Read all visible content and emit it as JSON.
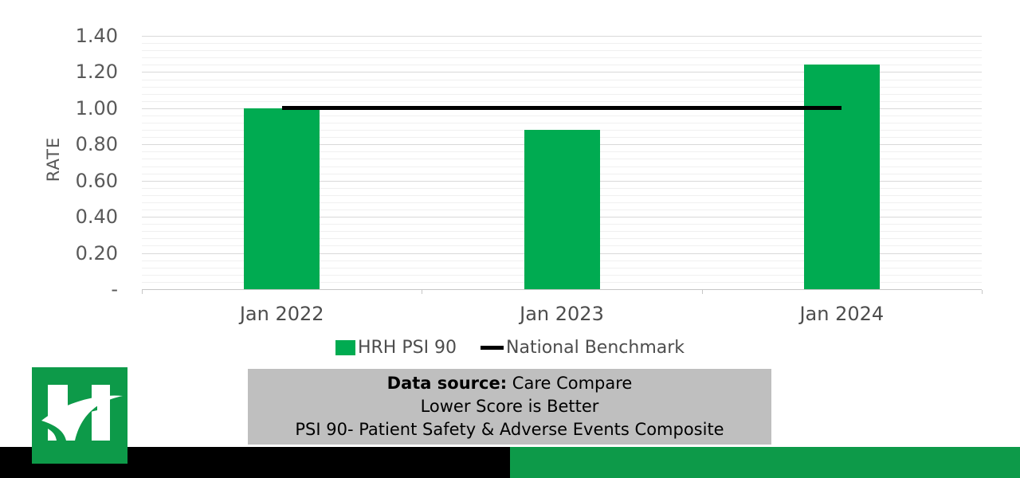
{
  "chart_data": {
    "type": "bar",
    "title": "",
    "categories": [
      "Jan 2022",
      "Jan 2023",
      "Jan 2024"
    ],
    "series": [
      {
        "name": "HRH PSI 90",
        "type": "bar",
        "color": "#00ab51",
        "values": [
          1.0,
          0.88,
          1.24
        ]
      },
      {
        "name": "National Benchmark",
        "type": "line",
        "color": "#000000",
        "values": [
          1.0,
          1.0,
          1.0
        ]
      }
    ],
    "xlabel": "",
    "ylabel": "RATE",
    "ylim": [
      0,
      1.4
    ],
    "ytick_step": 0.2,
    "yticks": [
      {
        "label": "1.40",
        "value": 1.4
      },
      {
        "label": "1.20",
        "value": 1.2
      },
      {
        "label": "1.00",
        "value": 1.0
      },
      {
        "label": "0.80",
        "value": 0.8
      },
      {
        "label": "0.60",
        "value": 0.6
      },
      {
        "label": "0.40",
        "value": 0.4
      },
      {
        "label": "0.20",
        "value": 0.2
      },
      {
        "label": "-",
        "value": 0.0
      }
    ],
    "grid": "horizontal major + minor",
    "legend_position": "bottom"
  },
  "footer": {
    "line1_label": "Data source:",
    "line1_value": " Care Compare",
    "line2": "Lower Score is Better",
    "line3": "PSI 90- Patient Safety & Adverse Events Composite",
    "bg_color": "#bfbfbf"
  },
  "logo": {
    "monogram": "H"
  },
  "colors": {
    "bar_green": "#00ab51",
    "brand_green": "#0d9a49",
    "bottom_black": "#000000",
    "footer_bg": "#bfbfbf",
    "grid_major": "#d9d9d9",
    "grid_minor": "#f0f0f0",
    "benchmark_black": "#000000"
  }
}
